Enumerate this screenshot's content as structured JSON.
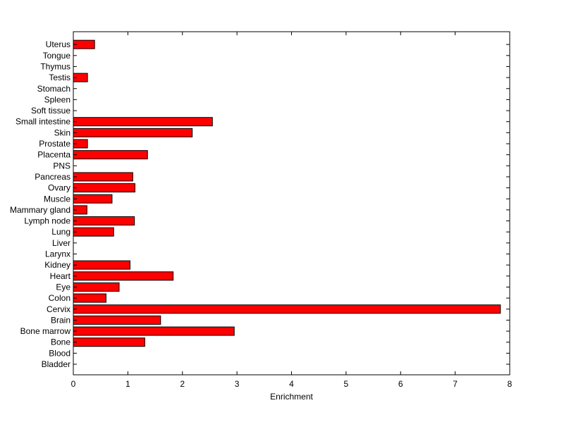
{
  "chart_data": {
    "type": "bar",
    "orientation": "horizontal",
    "xlabel": "Enrichment",
    "ylabel": "",
    "title": "",
    "xlim": [
      0,
      8
    ],
    "xticks": [
      0,
      1,
      2,
      3,
      4,
      5,
      6,
      7,
      8
    ],
    "grid": false,
    "bar_color": "#ff0000",
    "bar_edge_color": "#000000",
    "categories": [
      "Bladder",
      "Blood",
      "Bone",
      "Bone marrow",
      "Brain",
      "Cervix",
      "Colon",
      "Eye",
      "Heart",
      "Kidney",
      "Larynx",
      "Liver",
      "Lung",
      "Lymph node",
      "Mammary gland",
      "Muscle",
      "Ovary",
      "Pancreas",
      "PNS",
      "Placenta",
      "Prostate",
      "Skin",
      "Small intestine",
      "Soft tissue",
      "Spleen",
      "Stomach",
      "Testis",
      "Thymus",
      "Tongue",
      "Uterus"
    ],
    "values": [
      0,
      0,
      1.31,
      2.95,
      1.6,
      7.83,
      0.6,
      0.84,
      1.83,
      1.04,
      0,
      0,
      0.74,
      1.12,
      0.25,
      0.71,
      1.13,
      1.09,
      0,
      1.36,
      0.26,
      2.18,
      2.55,
      0,
      0,
      0,
      0.26,
      0,
      0,
      0.39
    ]
  }
}
